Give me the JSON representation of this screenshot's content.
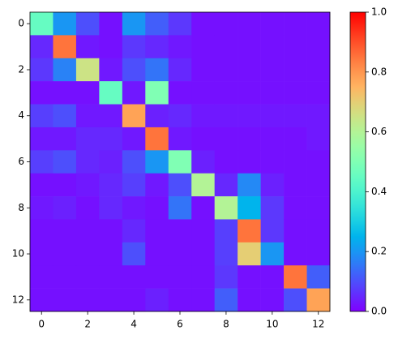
{
  "chart_data": {
    "type": "heatmap",
    "colormap": "rainbow",
    "values": [
      [
        0.45,
        0.2,
        0.1,
        0.02,
        0.2,
        0.12,
        0.07,
        0.02,
        0.02,
        0.02,
        0.02,
        0.02,
        0.02
      ],
      [
        0.05,
        0.85,
        0.03,
        0.02,
        0.07,
        0.05,
        0.03,
        0.02,
        0.02,
        0.02,
        0.02,
        0.02,
        0.02
      ],
      [
        0.07,
        0.17,
        0.65,
        0.03,
        0.1,
        0.15,
        0.05,
        0.02,
        0.02,
        0.02,
        0.02,
        0.02,
        0.02
      ],
      [
        0.02,
        0.02,
        0.02,
        0.45,
        0.03,
        0.5,
        0.02,
        0.02,
        0.02,
        0.02,
        0.02,
        0.02,
        0.02
      ],
      [
        0.08,
        0.1,
        0.03,
        0.03,
        0.78,
        0.04,
        0.05,
        0.03,
        0.03,
        0.03,
        0.03,
        0.03,
        0.03
      ],
      [
        0.03,
        0.03,
        0.05,
        0.05,
        0.03,
        0.85,
        0.03,
        0.02,
        0.02,
        0.02,
        0.02,
        0.02,
        0.03
      ],
      [
        0.08,
        0.1,
        0.05,
        0.04,
        0.1,
        0.2,
        0.5,
        0.04,
        0.02,
        0.02,
        0.02,
        0.02,
        0.02
      ],
      [
        0.02,
        0.02,
        0.03,
        0.05,
        0.08,
        0.03,
        0.1,
        0.6,
        0.05,
        0.18,
        0.04,
        0.02,
        0.02
      ],
      [
        0.03,
        0.04,
        0.02,
        0.05,
        0.03,
        0.02,
        0.15,
        0.02,
        0.6,
        0.25,
        0.07,
        0.02,
        0.02
      ],
      [
        0.02,
        0.02,
        0.02,
        0.02,
        0.05,
        0.02,
        0.02,
        0.02,
        0.08,
        0.85,
        0.07,
        0.02,
        0.02
      ],
      [
        0.02,
        0.02,
        0.02,
        0.02,
        0.1,
        0.02,
        0.02,
        0.02,
        0.08,
        0.7,
        0.2,
        0.02,
        0.02
      ],
      [
        0.02,
        0.02,
        0.02,
        0.02,
        0.02,
        0.02,
        0.02,
        0.02,
        0.07,
        0.02,
        0.02,
        0.85,
        0.12
      ],
      [
        0.02,
        0.02,
        0.02,
        0.02,
        0.02,
        0.04,
        0.02,
        0.02,
        0.12,
        0.02,
        0.02,
        0.1,
        0.78
      ]
    ],
    "xlim": [
      -0.5,
      12.5
    ],
    "ylim": [
      12.5,
      -0.5
    ],
    "xticks": [
      0,
      2,
      4,
      6,
      8,
      10,
      12
    ],
    "yticks": [
      0,
      2,
      4,
      6,
      8,
      10,
      12
    ],
    "colorbar": {
      "clim": [
        0,
        1
      ],
      "ticks": [
        {
          "value": 0,
          "label": "0.0"
        },
        0.2,
        0.4,
        0.6,
        0.8,
        {
          "value": 1,
          "label": "1.0"
        }
      ]
    }
  }
}
